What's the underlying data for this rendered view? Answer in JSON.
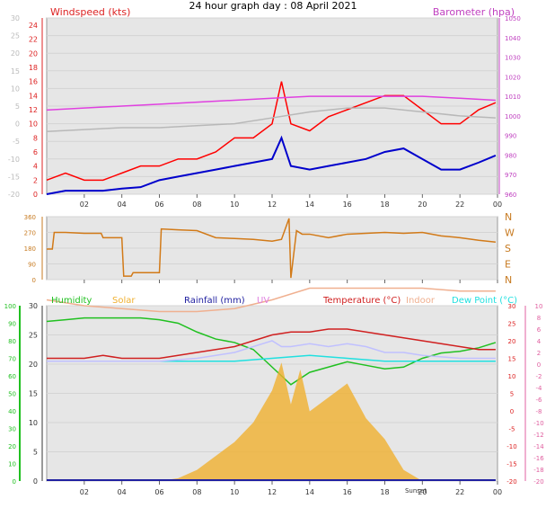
{
  "page_title": "24 hour graph day : 08 April 2021",
  "chart_data": [
    {
      "type": "line",
      "panel": "wind-baro",
      "ylim": [
        -20,
        30
      ],
      "y2lim": [
        960,
        1050
      ],
      "yticks_left_outer": [
        -20,
        -15,
        -10,
        -5,
        0,
        5,
        10,
        15,
        20,
        25,
        30
      ],
      "yticks_left_inner": [
        0,
        2,
        4,
        6,
        8,
        10,
        12,
        14,
        16,
        18,
        20,
        22,
        24
      ],
      "yticks_right": [
        960,
        970,
        980,
        990,
        1000,
        1010,
        1020,
        1030,
        1040,
        1050
      ],
      "xticks": [
        "02",
        "04",
        "06",
        "08",
        "10",
        "12",
        "14",
        "16",
        "18",
        "20",
        "22",
        "00"
      ],
      "legend": {
        "windspeed": "Windspeed (kts)",
        "barometer": "Barometer (hpa)"
      },
      "colors": {
        "windspeed": "#ff0000",
        "gust_base": "#0000cc",
        "barometer": "#e040e0",
        "grey": "#b8b8b8",
        "axis_left": "#cc2222",
        "axis_right": "#c040c0"
      },
      "series": [
        {
          "key": "windspeed",
          "x": [
            0,
            1,
            2,
            3,
            4,
            5,
            6,
            7,
            8,
            9,
            10,
            11,
            12,
            12.5,
            13,
            14,
            15,
            16,
            17,
            18,
            19,
            20,
            21,
            22,
            23,
            23.9
          ],
          "values": [
            2,
            3,
            2,
            2,
            3,
            4,
            4,
            5,
            5,
            6,
            8,
            8,
            10,
            16,
            10,
            9,
            11,
            12,
            13,
            14,
            14,
            12,
            10,
            10,
            12,
            13
          ]
        },
        {
          "key": "gust_base",
          "x": [
            0,
            1,
            2,
            3,
            4,
            5,
            6,
            7,
            8,
            9,
            10,
            11,
            12,
            12.5,
            13,
            14,
            15,
            16,
            17,
            18,
            19,
            20,
            21,
            22,
            23,
            23.9
          ],
          "values": [
            0,
            0.5,
            0.5,
            0.5,
            0.8,
            1,
            2,
            2.5,
            3,
            3.5,
            4,
            4.5,
            5,
            8,
            4,
            3.5,
            4,
            4.5,
            5,
            6,
            6.5,
            5,
            3.5,
            3.5,
            4.5,
            5.5
          ]
        },
        {
          "key": "barometer",
          "x": [
            0,
            2,
            4,
            6,
            8,
            10,
            12,
            14,
            16,
            18,
            20,
            22,
            23.9
          ],
          "values": [
            1003,
            1004,
            1005,
            1006,
            1007,
            1008,
            1009,
            1010,
            1010,
            1010,
            1010,
            1009,
            1008
          ]
        },
        {
          "key": "grey",
          "x": [
            0,
            2,
            4,
            6,
            8,
            10,
            12,
            14,
            16,
            18,
            20,
            22,
            23.9
          ],
          "values": [
            992,
            993,
            994,
            994,
            995,
            996,
            999,
            1002,
            1004,
            1004,
            1002,
            1000,
            999
          ]
        }
      ]
    },
    {
      "type": "line",
      "panel": "wind-direction",
      "ylim": [
        0,
        360
      ],
      "yticks": [
        0,
        90,
        180,
        270,
        360
      ],
      "yticks_right": [
        "N",
        "W",
        "S",
        "E",
        "N"
      ],
      "xticks": [
        "02",
        "04",
        "06",
        "08",
        "10",
        "12",
        "14",
        "16",
        "18",
        "20",
        "22",
        "00"
      ],
      "colors": {
        "direction": "#d27a18"
      },
      "series": [
        {
          "key": "direction",
          "x": [
            0,
            0.3,
            0.4,
            1,
            2,
            2.9,
            3,
            4,
            4.1,
            4.5,
            4.6,
            5,
            6,
            6.1,
            7,
            8,
            9,
            10,
            11,
            12,
            12.5,
            12.9,
            13,
            13.3,
            13.6,
            14,
            15,
            16,
            17,
            18,
            19,
            20,
            21,
            22,
            23,
            23.9
          ],
          "values": [
            175,
            175,
            270,
            270,
            265,
            265,
            240,
            240,
            20,
            20,
            40,
            40,
            40,
            290,
            285,
            280,
            240,
            235,
            230,
            220,
            230,
            350,
            10,
            280,
            260,
            260,
            240,
            260,
            265,
            270,
            265,
            270,
            250,
            240,
            225,
            215
          ]
        }
      ]
    },
    {
      "type": "line",
      "panel": "temp-humidity",
      "ylim": [
        -20,
        10
      ],
      "y_outer_lim": [
        0,
        100
      ],
      "y_inner_lim": [
        0,
        30
      ],
      "yticks_outer": [
        0,
        10,
        20,
        30,
        40,
        50,
        60,
        70,
        80,
        90,
        100
      ],
      "yticks_inner": [
        0,
        5,
        10,
        15,
        20,
        25,
        30
      ],
      "yticks_right_inner": [
        -20,
        -15,
        -10,
        -5,
        0,
        5,
        10,
        15,
        20,
        25,
        30
      ],
      "yticks_right_outer": [
        -20,
        -18,
        -16,
        -14,
        -12,
        -10,
        -8,
        -6,
        -4,
        -2,
        0,
        2,
        4,
        6,
        8,
        10
      ],
      "xticks": [
        "02",
        "04",
        "06",
        "08",
        "10",
        "12",
        "14",
        "16",
        "18",
        "20",
        "22",
        "00"
      ],
      "sunset_label": "Sunset",
      "legend": [
        "Humidity",
        "Solar",
        "Rainfall (mm)",
        "UV",
        "Temperature (°C)",
        "Indoor",
        "Dew Point (°C)"
      ],
      "colors": {
        "humidity": "#20c020",
        "solar": "#f0b030",
        "rainfall": "#2020a0",
        "uv": "#e080e0",
        "temperature": "#d02020",
        "indoor": "#f0b090",
        "dewpoint": "#20e0e0"
      },
      "series": [
        {
          "key": "humidity",
          "unit": "%",
          "x": [
            0,
            1,
            2,
            3,
            4,
            5,
            6,
            7,
            8,
            9,
            10,
            11,
            12,
            13,
            14,
            15,
            16,
            17,
            18,
            19,
            20,
            21,
            22,
            23,
            23.9
          ],
          "values": [
            91,
            92,
            93,
            93,
            93,
            93,
            92,
            90,
            85,
            81,
            79,
            75,
            65,
            55,
            62,
            65,
            68,
            66,
            64,
            65,
            70,
            73,
            74,
            76,
            79
          ]
        },
        {
          "key": "temperature",
          "unit": "°C",
          "x": [
            0,
            1,
            2,
            3,
            4,
            5,
            6,
            7,
            8,
            9,
            10,
            11,
            12,
            13,
            14,
            15,
            16,
            17,
            18,
            19,
            20,
            21,
            22,
            23,
            23.9
          ],
          "values": [
            1,
            1,
            1,
            1.5,
            1,
            1,
            1,
            1.5,
            2,
            2.5,
            3,
            4,
            5,
            5.5,
            5.5,
            6,
            6,
            5.5,
            5,
            4.5,
            4,
            3.5,
            3,
            2.5,
            2.5
          ]
        },
        {
          "key": "indoor",
          "unit": "°C",
          "x": [
            0,
            2,
            4,
            6,
            8,
            10,
            12,
            14,
            16,
            18,
            20,
            22,
            23.9
          ],
          "values": [
            11,
            10,
            9.5,
            9,
            9,
            9.5,
            11,
            13,
            13,
            13,
            13,
            12.5,
            12.5
          ]
        },
        {
          "key": "dewpoint",
          "unit": "°C",
          "x": [
            0,
            2,
            4,
            6,
            8,
            10,
            12,
            14,
            16,
            18,
            20,
            22,
            23.9
          ],
          "values": [
            0.5,
            0.5,
            0.5,
            0.5,
            0.5,
            0.5,
            1,
            1.5,
            1,
            0.5,
            0.5,
            0.5,
            0.5
          ]
        },
        {
          "key": "uv_line",
          "unit": "°C",
          "x": [
            0,
            2,
            4,
            6,
            8,
            10,
            12,
            12.5,
            13,
            14,
            15,
            16,
            17,
            18,
            19,
            20,
            22,
            23.9
          ],
          "values": [
            0.5,
            0.5,
            0.5,
            0.5,
            1,
            2,
            4,
            3,
            3,
            3.5,
            3,
            3.5,
            3,
            2,
            2,
            1.5,
            1,
            1
          ]
        },
        {
          "key": "solar",
          "unit": "relative",
          "x": [
            6,
            7,
            8,
            9,
            10,
            11,
            12,
            12.5,
            13,
            13.5,
            14,
            15,
            16,
            17,
            18,
            19,
            20
          ],
          "values": [
            0,
            0.02,
            0.08,
            0.18,
            0.28,
            0.42,
            0.65,
            0.85,
            0.55,
            0.8,
            0.5,
            0.6,
            0.7,
            0.45,
            0.3,
            0.08,
            0
          ]
        },
        {
          "key": "rainfall",
          "unit": "mm",
          "x": [
            0,
            23.9
          ],
          "values": [
            0,
            0
          ]
        }
      ]
    }
  ]
}
